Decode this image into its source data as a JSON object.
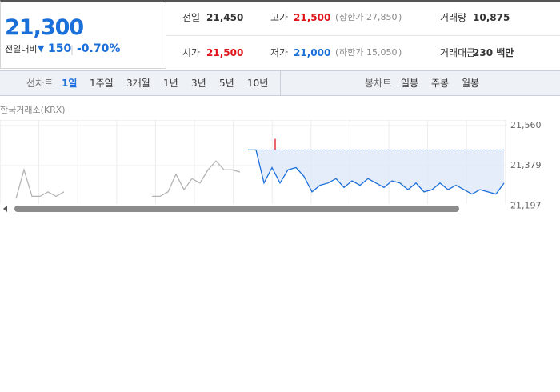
{
  "summary": {
    "price": "21,300",
    "change_label": "전일대비",
    "change": "150",
    "change_pct": "-0.70%"
  },
  "stats": [
    {
      "label": "전일",
      "value": "21,450"
    },
    {
      "label": "고가",
      "value": "21,500",
      "limit_label": "상한가",
      "limit": "27,850"
    },
    {
      "label": "거래량",
      "value": "10,875"
    },
    {
      "label": "시가",
      "value": "21,500"
    },
    {
      "label": "저가",
      "value": "21,000",
      "limit_label": "하한가",
      "limit": "15,050"
    },
    {
      "label": "거래대금",
      "value": "230 백만"
    }
  ],
  "line_tabs": {
    "label": "선차트",
    "items": [
      "1일",
      "1주일",
      "3개월",
      "1년",
      "3년",
      "5년",
      "10년"
    ]
  },
  "candle_tabs": {
    "label": "봉차트",
    "items": [
      "일봉",
      "주봉",
      "월봉"
    ]
  },
  "chart": {
    "type": "line",
    "source": "한국거래소(KRX)",
    "yticks": [
      {
        "value": 21560,
        "label": "21,560"
      },
      {
        "value": 21379,
        "label": "21,379"
      },
      {
        "value": 21197,
        "label": "21,197"
      }
    ],
    "reference": 21450,
    "high": 21500,
    "series": [
      {
        "color": "#b4b4b4",
        "values": [
          null,
          null,
          21230,
          21360,
          21240,
          21240,
          21260,
          21240,
          21260,
          null,
          null,
          null,
          null,
          null,
          null,
          null,
          null,
          null,
          null,
          21240,
          21240,
          21260,
          21340,
          21270,
          21320,
          21300,
          21360,
          21400,
          21360,
          21360,
          21350,
          null,
          null,
          null,
          null,
          null,
          null,
          null,
          null,
          null,
          null,
          null,
          null,
          null,
          null,
          null,
          null,
          null,
          null,
          null,
          null,
          null,
          null,
          null,
          null,
          null,
          null,
          null,
          null,
          null,
          null,
          null,
          null,
          null
        ]
      },
      {
        "color": "#1a6fd8",
        "values": [
          null,
          null,
          null,
          null,
          null,
          null,
          null,
          null,
          null,
          null,
          null,
          null,
          null,
          null,
          null,
          null,
          null,
          null,
          null,
          null,
          null,
          null,
          null,
          null,
          null,
          null,
          null,
          null,
          null,
          null,
          null,
          21450,
          21450,
          21300,
          21370,
          21300,
          21360,
          21370,
          21330,
          21260,
          21290,
          21300,
          21320,
          21280,
          21310,
          21290,
          21320,
          21300,
          21280,
          21310,
          21300,
          21270,
          21300,
          21260,
          21270,
          21300,
          21270,
          21290,
          21270,
          21250,
          21270,
          21260,
          21250,
          21300
        ]
      }
    ]
  }
}
